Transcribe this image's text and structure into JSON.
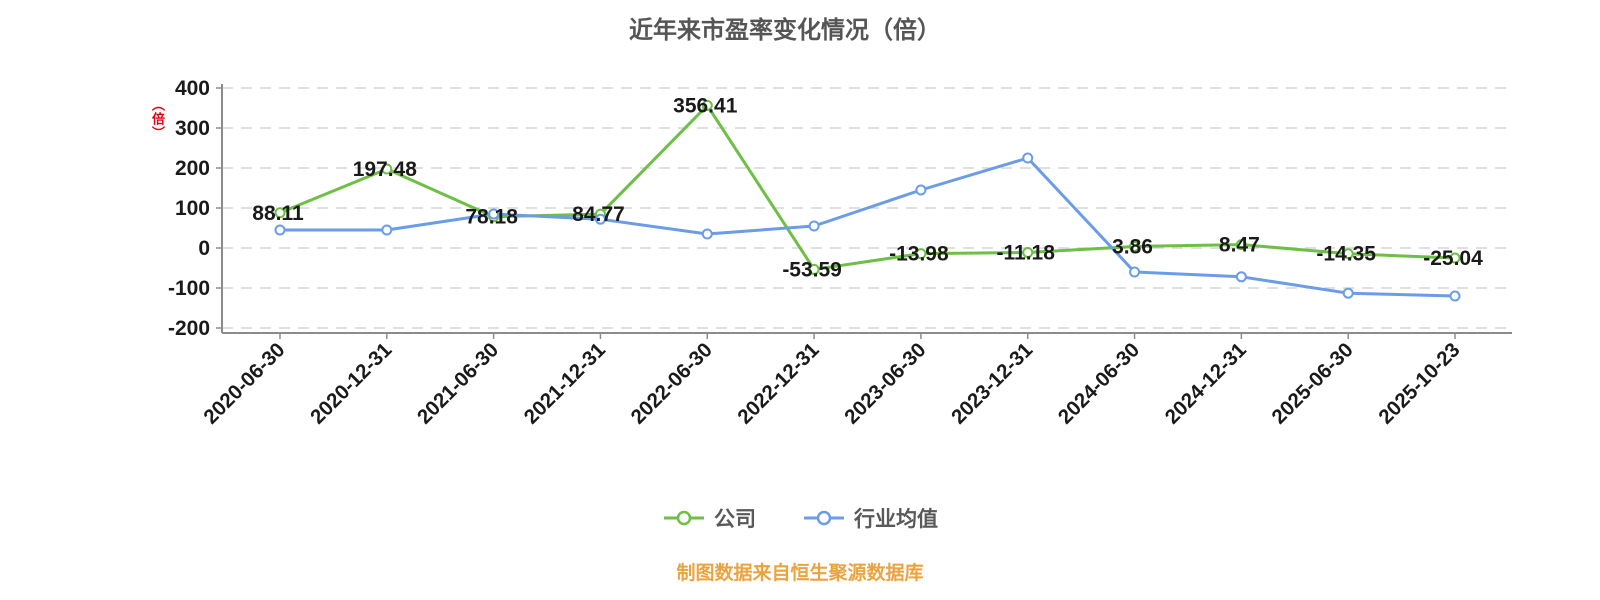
{
  "title": "近年来市盈率变化情况（倍）",
  "y_axis_unit": "（倍）",
  "footer": "制图数据来自恒生聚源数据库",
  "style": {
    "background": "#ffffff",
    "title_color": "#555555",
    "text_color": "#1a1a1a",
    "axis_color": "#8c8c8c",
    "grid_color": "#d6d6d6",
    "footer_color": "#eba340",
    "unit_color": "#e60012",
    "legend_text_color": "#595959"
  },
  "chart_data": {
    "type": "line",
    "title": "近年来市盈率变化情况（倍）",
    "categories": [
      "2020-06-30",
      "2020-12-31",
      "2021-06-30",
      "2021-12-31",
      "2022-06-30",
      "2022-12-31",
      "2023-06-30",
      "2023-12-31",
      "2024-06-30",
      "2024-12-31",
      "2025-06-30",
      "2025-10-23"
    ],
    "series": [
      {
        "key": "company",
        "name": "公司",
        "color": "#6dbf45",
        "show_labels": true,
        "values": [
          88.11,
          197.48,
          78.18,
          84.77,
          356.41,
          -53.59,
          -13.98,
          -11.18,
          3.86,
          8.47,
          -14.35,
          -25.04
        ]
      },
      {
        "key": "industry-average",
        "name": "行业均值",
        "color": "#6b9ce8",
        "show_labels": false,
        "values": [
          45,
          45,
          85,
          72,
          35,
          55,
          145,
          225,
          -60,
          -72,
          -113,
          -120
        ]
      }
    ],
    "xlabel": "",
    "ylabel": "（倍）",
    "ylim": [
      -200,
      400
    ],
    "y_ticks": [
      400,
      300,
      200,
      100,
      0,
      -100,
      -200
    ],
    "grid": "dashed",
    "legend_position": "bottom"
  }
}
